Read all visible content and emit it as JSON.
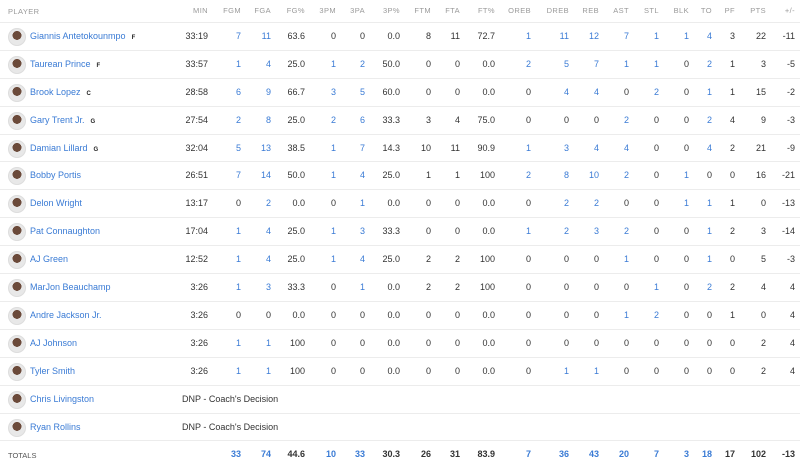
{
  "columns": [
    "PLAYER",
    "MIN",
    "FGM",
    "FGA",
    "FG%",
    "3PM",
    "3PA",
    "3P%",
    "FTM",
    "FTA",
    "FT%",
    "OREB",
    "DREB",
    "REB",
    "AST",
    "STL",
    "BLK",
    "TO",
    "PF",
    "PTS",
    "+/-"
  ],
  "link_columns": [
    "FGM",
    "FGA",
    "3PM",
    "3PA",
    "OREB",
    "DREB",
    "REB",
    "AST",
    "STL",
    "BLK",
    "TO"
  ],
  "link_color": "#3a7bd5",
  "players": [
    {
      "name": "Giannis Antetokounmpo",
      "pos": "F",
      "stats": [
        "33:19",
        "7",
        "11",
        "63.6",
        "0",
        "0",
        "0.0",
        "8",
        "11",
        "72.7",
        "1",
        "11",
        "12",
        "7",
        "1",
        "1",
        "4",
        "3",
        "22",
        "-11"
      ]
    },
    {
      "name": "Taurean Prince",
      "pos": "F",
      "stats": [
        "33:57",
        "1",
        "4",
        "25.0",
        "1",
        "2",
        "50.0",
        "0",
        "0",
        "0.0",
        "2",
        "5",
        "7",
        "1",
        "1",
        "0",
        "2",
        "1",
        "3",
        "-5"
      ]
    },
    {
      "name": "Brook Lopez",
      "pos": "C",
      "stats": [
        "28:58",
        "6",
        "9",
        "66.7",
        "3",
        "5",
        "60.0",
        "0",
        "0",
        "0.0",
        "0",
        "4",
        "4",
        "0",
        "2",
        "0",
        "1",
        "1",
        "15",
        "-2"
      ]
    },
    {
      "name": "Gary Trent Jr.",
      "pos": "G",
      "stats": [
        "27:54",
        "2",
        "8",
        "25.0",
        "2",
        "6",
        "33.3",
        "3",
        "4",
        "75.0",
        "0",
        "0",
        "0",
        "2",
        "0",
        "0",
        "2",
        "4",
        "9",
        "-3"
      ]
    },
    {
      "name": "Damian Lillard",
      "pos": "G",
      "stats": [
        "32:04",
        "5",
        "13",
        "38.5",
        "1",
        "7",
        "14.3",
        "10",
        "11",
        "90.9",
        "1",
        "3",
        "4",
        "4",
        "0",
        "0",
        "4",
        "2",
        "21",
        "-9"
      ]
    },
    {
      "name": "Bobby Portis",
      "pos": "",
      "stats": [
        "26:51",
        "7",
        "14",
        "50.0",
        "1",
        "4",
        "25.0",
        "1",
        "1",
        "100",
        "2",
        "8",
        "10",
        "2",
        "0",
        "1",
        "0",
        "0",
        "16",
        "-21"
      ]
    },
    {
      "name": "Delon Wright",
      "pos": "",
      "stats": [
        "13:17",
        "0",
        "2",
        "0.0",
        "0",
        "1",
        "0.0",
        "0",
        "0",
        "0.0",
        "0",
        "2",
        "2",
        "0",
        "0",
        "1",
        "1",
        "1",
        "0",
        "-13"
      ]
    },
    {
      "name": "Pat Connaughton",
      "pos": "",
      "stats": [
        "17:04",
        "1",
        "4",
        "25.0",
        "1",
        "3",
        "33.3",
        "0",
        "0",
        "0.0",
        "1",
        "2",
        "3",
        "2",
        "0",
        "0",
        "1",
        "2",
        "3",
        "-14"
      ]
    },
    {
      "name": "AJ Green",
      "pos": "",
      "stats": [
        "12:52",
        "1",
        "4",
        "25.0",
        "1",
        "4",
        "25.0",
        "2",
        "2",
        "100",
        "0",
        "0",
        "0",
        "1",
        "0",
        "0",
        "1",
        "0",
        "5",
        "-3"
      ]
    },
    {
      "name": "MarJon Beauchamp",
      "pos": "",
      "stats": [
        "3:26",
        "1",
        "3",
        "33.3",
        "0",
        "1",
        "0.0",
        "2",
        "2",
        "100",
        "0",
        "0",
        "0",
        "0",
        "1",
        "0",
        "2",
        "2",
        "4",
        "4"
      ]
    },
    {
      "name": "Andre Jackson Jr.",
      "pos": "",
      "stats": [
        "3:26",
        "0",
        "0",
        "0.0",
        "0",
        "0",
        "0.0",
        "0",
        "0",
        "0.0",
        "0",
        "0",
        "0",
        "1",
        "2",
        "0",
        "0",
        "1",
        "0",
        "4"
      ]
    },
    {
      "name": "AJ Johnson",
      "pos": "",
      "stats": [
        "3:26",
        "1",
        "1",
        "100",
        "0",
        "0",
        "0.0",
        "0",
        "0",
        "0.0",
        "0",
        "0",
        "0",
        "0",
        "0",
        "0",
        "0",
        "0",
        "2",
        "4"
      ]
    },
    {
      "name": "Tyler Smith",
      "pos": "",
      "stats": [
        "3:26",
        "1",
        "1",
        "100",
        "0",
        "0",
        "0.0",
        "0",
        "0",
        "0.0",
        "0",
        "1",
        "1",
        "0",
        "0",
        "0",
        "0",
        "0",
        "2",
        "4"
      ]
    },
    {
      "name": "Chris Livingston",
      "pos": "",
      "dnp": "DNP - Coach's Decision"
    },
    {
      "name": "Ryan Rollins",
      "pos": "",
      "dnp": "DNP - Coach's Decision"
    }
  ],
  "totals": {
    "label": "TOTALS",
    "stats": [
      "",
      "33",
      "74",
      "44.6",
      "10",
      "33",
      "30.3",
      "26",
      "31",
      "83.9",
      "7",
      "36",
      "43",
      "20",
      "7",
      "3",
      "18",
      "17",
      "102",
      "-13"
    ]
  }
}
